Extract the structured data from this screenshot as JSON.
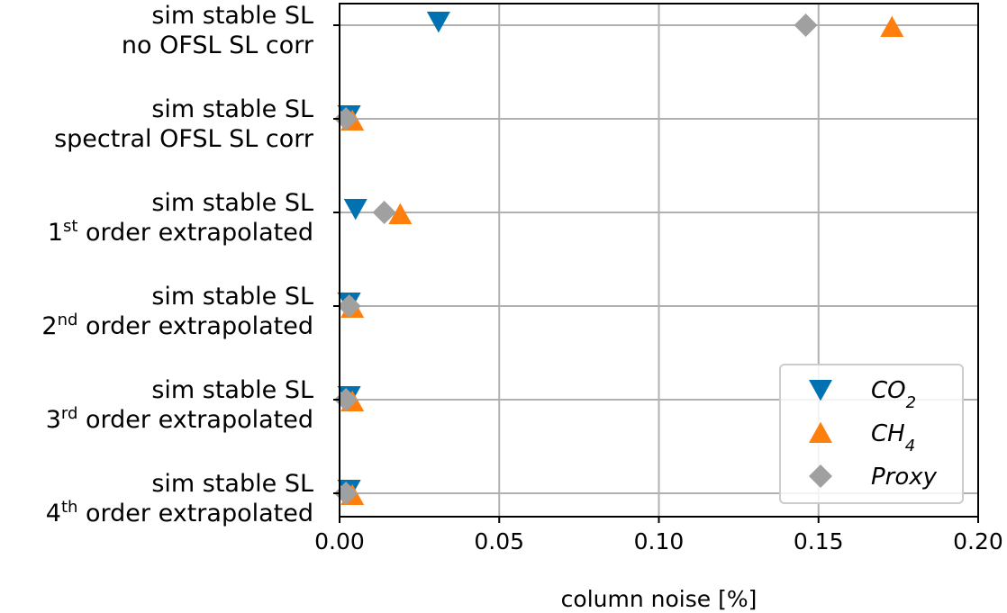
{
  "chart_data": {
    "type": "scatter",
    "orientation": "horizontal",
    "xlabel": "column noise [%]",
    "ylabel": "",
    "xlim": [
      0.0,
      0.2
    ],
    "xticks": [
      "0.00",
      "0.05",
      "0.10",
      "0.15",
      "0.20"
    ],
    "grid": true,
    "legend_position": "bottom-right",
    "categories": [
      {
        "line1": "sim stable SL",
        "line2": "no OFSL SL corr"
      },
      {
        "line1": "sim stable SL",
        "line2": "spectral OFSL SL corr"
      },
      {
        "line1": "sim stable SL",
        "ord": "1",
        "sup": "st",
        "rest": " order extrapolated"
      },
      {
        "line1": "sim stable SL",
        "ord": "2",
        "sup": "nd",
        "rest": " order extrapolated"
      },
      {
        "line1": "sim stable SL",
        "ord": "3",
        "sup": "rd",
        "rest": " order extrapolated"
      },
      {
        "line1": "sim stable SL",
        "ord": "4",
        "sup": "th",
        "rest": " order extrapolated"
      }
    ],
    "series": [
      {
        "name_main": "CO",
        "name_sub": "2",
        "marker": "triangle-down",
        "color": "#0072b2",
        "values": [
          0.031,
          0.003,
          0.005,
          0.003,
          0.003,
          0.003
        ]
      },
      {
        "name_main": "CH",
        "name_sub": "4",
        "marker": "triangle-up",
        "color": "#ff7f0e",
        "values": [
          0.173,
          0.004,
          0.019,
          0.004,
          0.004,
          0.004
        ]
      },
      {
        "name_main": "Proxy",
        "name_sub": "",
        "marker": "diamond",
        "color": "#a0a0a0",
        "values": [
          0.146,
          0.002,
          0.014,
          0.003,
          0.002,
          0.002
        ]
      }
    ]
  }
}
